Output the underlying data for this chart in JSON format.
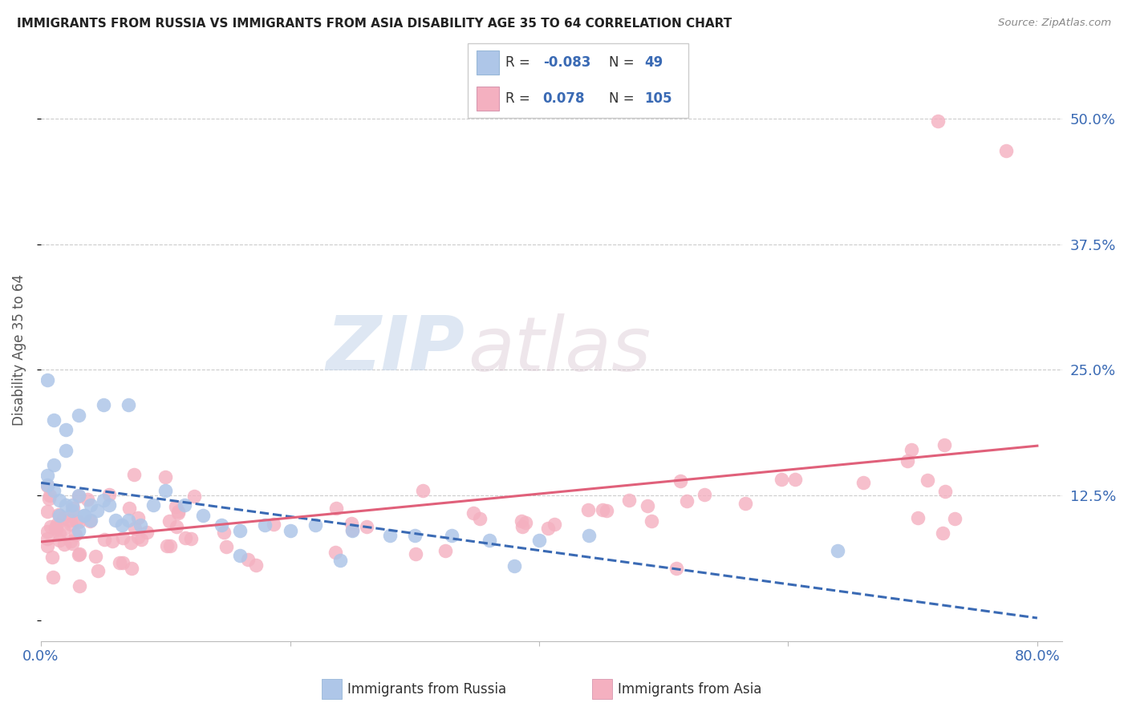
{
  "title": "IMMIGRANTS FROM RUSSIA VS IMMIGRANTS FROM ASIA DISABILITY AGE 35 TO 64 CORRELATION CHART",
  "source": "Source: ZipAtlas.com",
  "ylabel": "Disability Age 35 to 64",
  "xlim": [
    0.0,
    0.82
  ],
  "ylim": [
    -0.02,
    0.56
  ],
  "watermark_top": "ZIP",
  "watermark_bot": "atlas",
  "legend_r_russia": "-0.083",
  "legend_n_russia": "49",
  "legend_r_asia": "0.078",
  "legend_n_asia": "105",
  "russia_color": "#aec6e8",
  "russia_line_color": "#3a6ab4",
  "asia_color": "#f4b0c0",
  "asia_line_color": "#e0607a",
  "grid_color": "#cccccc",
  "title_color": "#222222",
  "tick_color": "#3a6ab4",
  "ytick_vals": [
    0.0,
    0.125,
    0.25,
    0.375,
    0.5
  ],
  "ytick_labels": [
    "",
    "12.5%",
    "25.0%",
    "37.5%",
    "50.0%"
  ],
  "xtick_vals": [
    0.0,
    0.2,
    0.4,
    0.6,
    0.8
  ],
  "xtick_labels": [
    "0.0%",
    "",
    "",
    "",
    "80.0%"
  ]
}
